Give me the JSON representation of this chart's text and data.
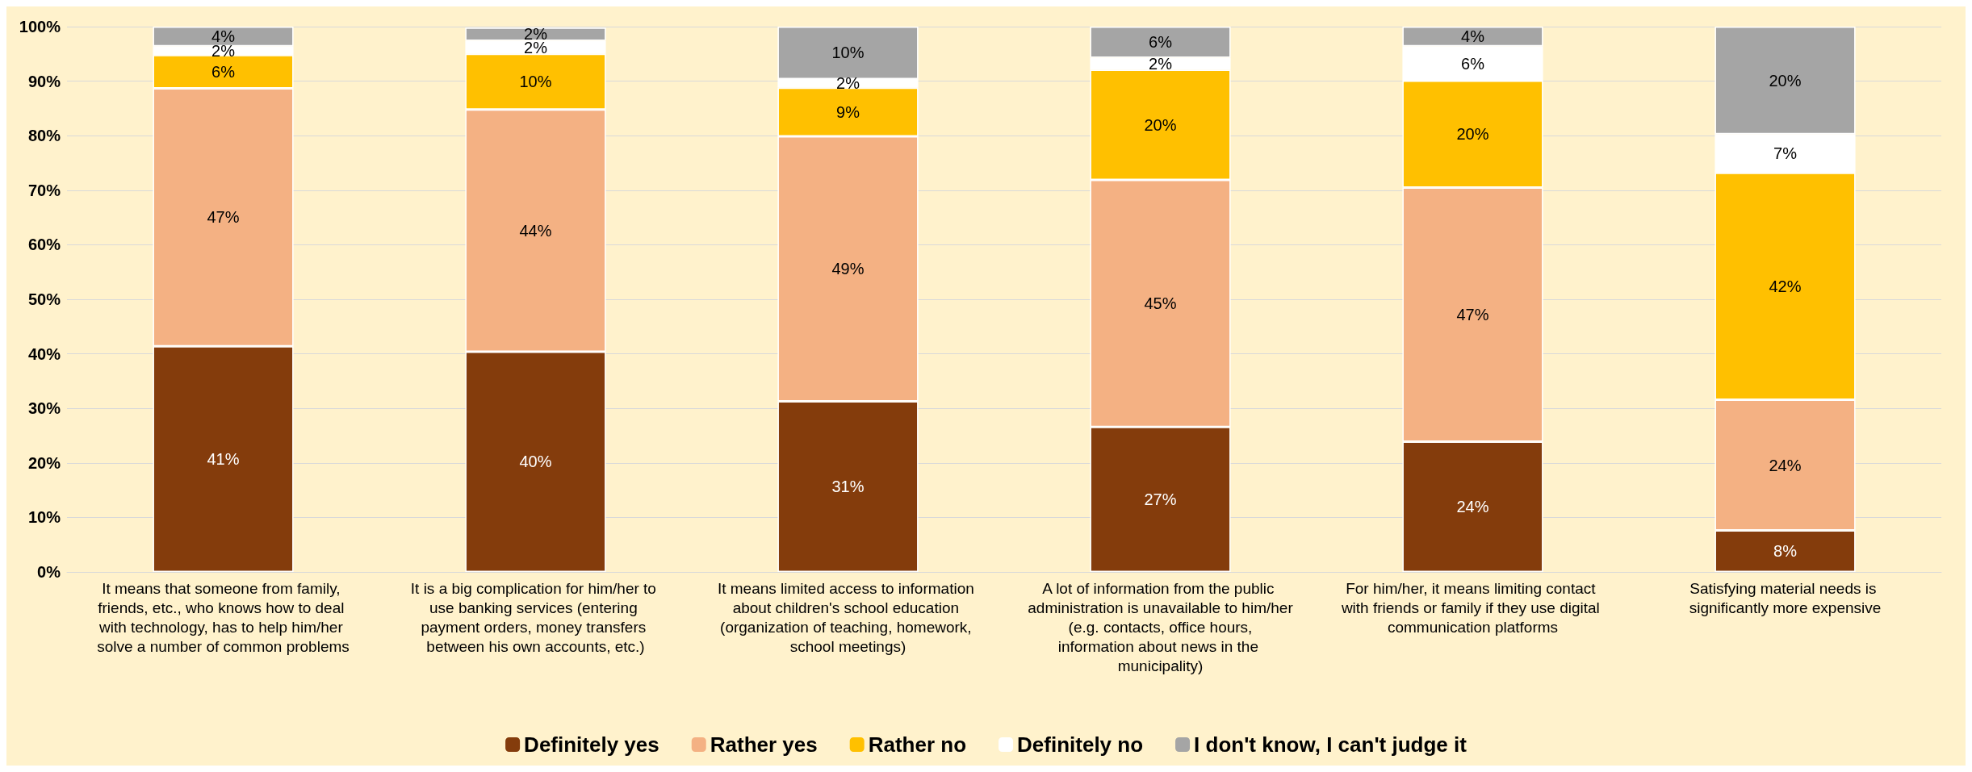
{
  "chart_data": {
    "type": "bar",
    "stacked": true,
    "categories": [
      "It means that someone from family, friends, etc., who knows how to deal with technology, has to help him/her solve a number of common problems",
      "It is a big complication for him/her to use banking services (entering payment orders, money transfers between his own accounts, etc.)",
      "It means limited access to information about children's school education (organization of teaching, homework, school meetings)",
      "A lot of information from the public administration is unavailable to him/her (e.g. contacts, office hours, information about news in the municipality)",
      "For him/her, it means limiting contact with friends or family if they use digital communication platforms",
      "Satisfying material needs is significantly more expensive"
    ],
    "series": [
      {
        "name": "Definitely yes",
        "color": "#843c0c",
        "values": [
          41.4,
          40.4,
          31.3,
          26.6,
          23.9,
          7.6
        ],
        "value_labels": [
          "41%",
          "40%",
          "31%",
          "27%",
          "24%",
          "8%"
        ]
      },
      {
        "name": "Rather yes",
        "color": "#f4b183",
        "values": [
          47.3,
          44.4,
          48.6,
          45.3,
          46.6,
          24.0
        ],
        "value_labels": [
          "47%",
          "44%",
          "49%",
          "45%",
          "47%",
          "24%"
        ]
      },
      {
        "name": "Rather no",
        "color": "#ffc000",
        "values": [
          6.1,
          10.2,
          8.9,
          20.2,
          19.6,
          41.6
        ],
        "value_labels": [
          "6%",
          "10%",
          "9%",
          "20%",
          "20%",
          "42%"
        ]
      },
      {
        "name": "Definitely no",
        "color": "#ffffff",
        "values": [
          1.6,
          2.4,
          1.6,
          2.2,
          6.3,
          7.1
        ],
        "value_labels": [
          "2%",
          "2%",
          "2%",
          "2%",
          "6%",
          "7%"
        ]
      },
      {
        "name": "I don't know, I can't judge it",
        "color": "#a5a5a5",
        "values": [
          3.6,
          2.4,
          9.6,
          5.7,
          3.6,
          19.7
        ],
        "value_labels": [
          "4%",
          "2%",
          "10%",
          "6%",
          "4%",
          "20%"
        ]
      }
    ],
    "ylim": [
      0,
      100
    ],
    "yticks": [
      {
        "value": 0,
        "label": "0%"
      },
      {
        "value": 10,
        "label": "10%"
      },
      {
        "value": 20,
        "label": "20%"
      },
      {
        "value": 30,
        "label": "30%"
      },
      {
        "value": 40,
        "label": "40%"
      },
      {
        "value": 50,
        "label": "50%"
      },
      {
        "value": 60,
        "label": "60%"
      },
      {
        "value": 70,
        "label": "70%"
      },
      {
        "value": 80,
        "label": "80%"
      },
      {
        "value": 90,
        "label": "90%"
      },
      {
        "value": 100,
        "label": "100%"
      }
    ],
    "grid": "y",
    "legend": "bottom"
  }
}
